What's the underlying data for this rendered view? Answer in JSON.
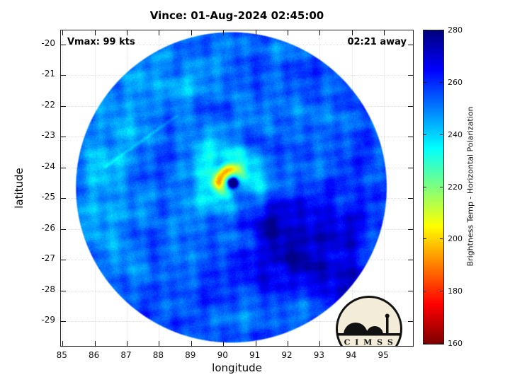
{
  "title": "Vince: 01-Aug-2024 02:45:00",
  "overlay": {
    "vmax": "Vmax: 99 kts",
    "eta": "02:21 away"
  },
  "axes": {
    "xlabel": "longitude",
    "ylabel": "latitude",
    "xticks": [
      85,
      86,
      87,
      88,
      89,
      90,
      91,
      92,
      93,
      94,
      95
    ],
    "yticks": [
      -20,
      -21,
      -22,
      -23,
      -24,
      -25,
      -26,
      -27,
      -28,
      -29
    ],
    "xlim": [
      84.95,
      95.9
    ],
    "ylim": [
      -29.8,
      -19.55
    ]
  },
  "colorbar": {
    "label": "Brightness Temp - Horizontal Polarization",
    "ticks": [
      280,
      260,
      240,
      220,
      200,
      180,
      160
    ],
    "min": 160,
    "max": 280,
    "colormap": "jet-reversed"
  },
  "logo": {
    "name": "CIMSS",
    "text": "C I M S S"
  },
  "chart_data": {
    "type": "heatmap",
    "title": "Vince: 01-Aug-2024 02:45:00",
    "xlabel": "longitude",
    "ylabel": "latitude",
    "xlim": [
      84.95,
      95.9
    ],
    "ylim": [
      -29.8,
      -19.55
    ],
    "value_label": "Brightness Temp - Horizontal Polarization",
    "value_range": [
      160,
      280
    ],
    "grid": true,
    "storm": {
      "name": "Vince",
      "timestamp": "01-Aug-2024 02:45:00",
      "vmax_kts": 99,
      "time_offset": "02:21 away",
      "eye_lon": 90.3,
      "eye_lat": -24.5
    },
    "swath": {
      "center_lon": 90.25,
      "center_lat": -24.65,
      "radius_deg": 4.85
    },
    "features": [
      {
        "name": "background-shield",
        "tb_k": 254
      },
      {
        "name": "eye",
        "lon": 90.3,
        "lat": -24.5,
        "radius_deg": 0.13,
        "tb_k": 278
      },
      {
        "name": "eyewall-ring",
        "radius_deg": 0.42,
        "width_deg": 0.2,
        "tb_k": 200,
        "warm_side_azimuth_rad": 2.5
      },
      {
        "name": "moat-cyan-ring",
        "radius_deg": 0.85,
        "width_deg": 0.5,
        "tb_k": 240
      },
      {
        "name": "dark-convection-southeast",
        "lon": 92.6,
        "lat": -26.6,
        "sigma_lon": 1.9,
        "sigma_lat": 1.25,
        "tb_k": 271
      },
      {
        "name": "dark-patch-inner-southeast",
        "lon": 91.2,
        "lat": -25.7,
        "sigma_lon": 1.0,
        "sigma_lat": 0.75,
        "tb_k": 268
      },
      {
        "name": "dark-convection-south",
        "lon": 93.8,
        "lat": -28.1,
        "sigma_lon": 1.0,
        "sigma_lat": 0.8,
        "tb_k": 268
      },
      {
        "name": "cyan-band-west",
        "lon": 86.4,
        "lat": -24.3,
        "sigma_lon": 0.9,
        "sigma_lat": 2.0,
        "tb_k": 245
      },
      {
        "name": "cyan-band-northwest",
        "lon": 88.0,
        "lat": -21.5,
        "sigma_lon": 1.4,
        "sigma_lat": 0.9,
        "tb_k": 248
      },
      {
        "name": "scan-seam",
        "from": [
          86.3,
          -24.0
        ],
        "to": [
          88.6,
          -22.3
        ],
        "tb_delta": -6
      }
    ]
  }
}
